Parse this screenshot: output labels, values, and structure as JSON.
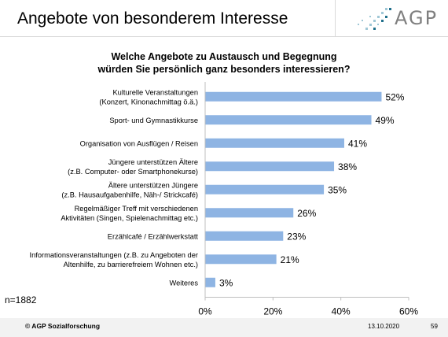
{
  "header": {
    "title": "Angebote von besonderem Interesse",
    "logo_text": "AGP"
  },
  "chart_data": {
    "type": "bar",
    "orientation": "horizontal",
    "title_lines": [
      "Welche Angebote zu Austausch und Begegnung",
      "würden Sie persönlich ganz besonders interessieren?"
    ],
    "categories": [
      [
        "Kulturelle Veranstaltungen",
        "(Konzert, Kinonachmittag ö.ä.)"
      ],
      [
        "Sport- und Gymnastikkurse"
      ],
      [
        "Organisation von Ausflügen / Reisen"
      ],
      [
        "Jüngere unterstützen Ältere",
        "(z.B. Computer- oder Smartphonekurse)"
      ],
      [
        "Ältere unterstützen Jüngere",
        "(z.B. Hausaufgabenhilfe, Näh-/ Strickcafé)"
      ],
      [
        "Regelmäßiger Treff mit verschiedenen",
        "Aktivitäten (Singen, Spielenachmittag etc.)"
      ],
      [
        "Erzählcafé / Erzählwerkstatt"
      ],
      [
        "Informationsveranstaltungen (z.B. zu Angeboten der",
        "Altenhilfe, zu barrierefreiem Wohnen etc.)"
      ],
      [
        "Weiteres"
      ]
    ],
    "values": [
      52,
      49,
      41,
      38,
      35,
      26,
      23,
      21,
      3
    ],
    "value_labels": [
      "52%",
      "49%",
      "41%",
      "38%",
      "35%",
      "26%",
      "23%",
      "21%",
      "3%"
    ],
    "xlim": [
      0,
      60
    ],
    "xticks": [
      0,
      20,
      40,
      60
    ],
    "xtick_labels": [
      "0%",
      "20%",
      "40%",
      "60%"
    ],
    "bar_color": "#8eb4e3",
    "grid": false
  },
  "sample_size": "n=1882",
  "footer": {
    "copyright": "© AGP Sozialforschung",
    "date": "13.10.2020",
    "page": "59"
  }
}
